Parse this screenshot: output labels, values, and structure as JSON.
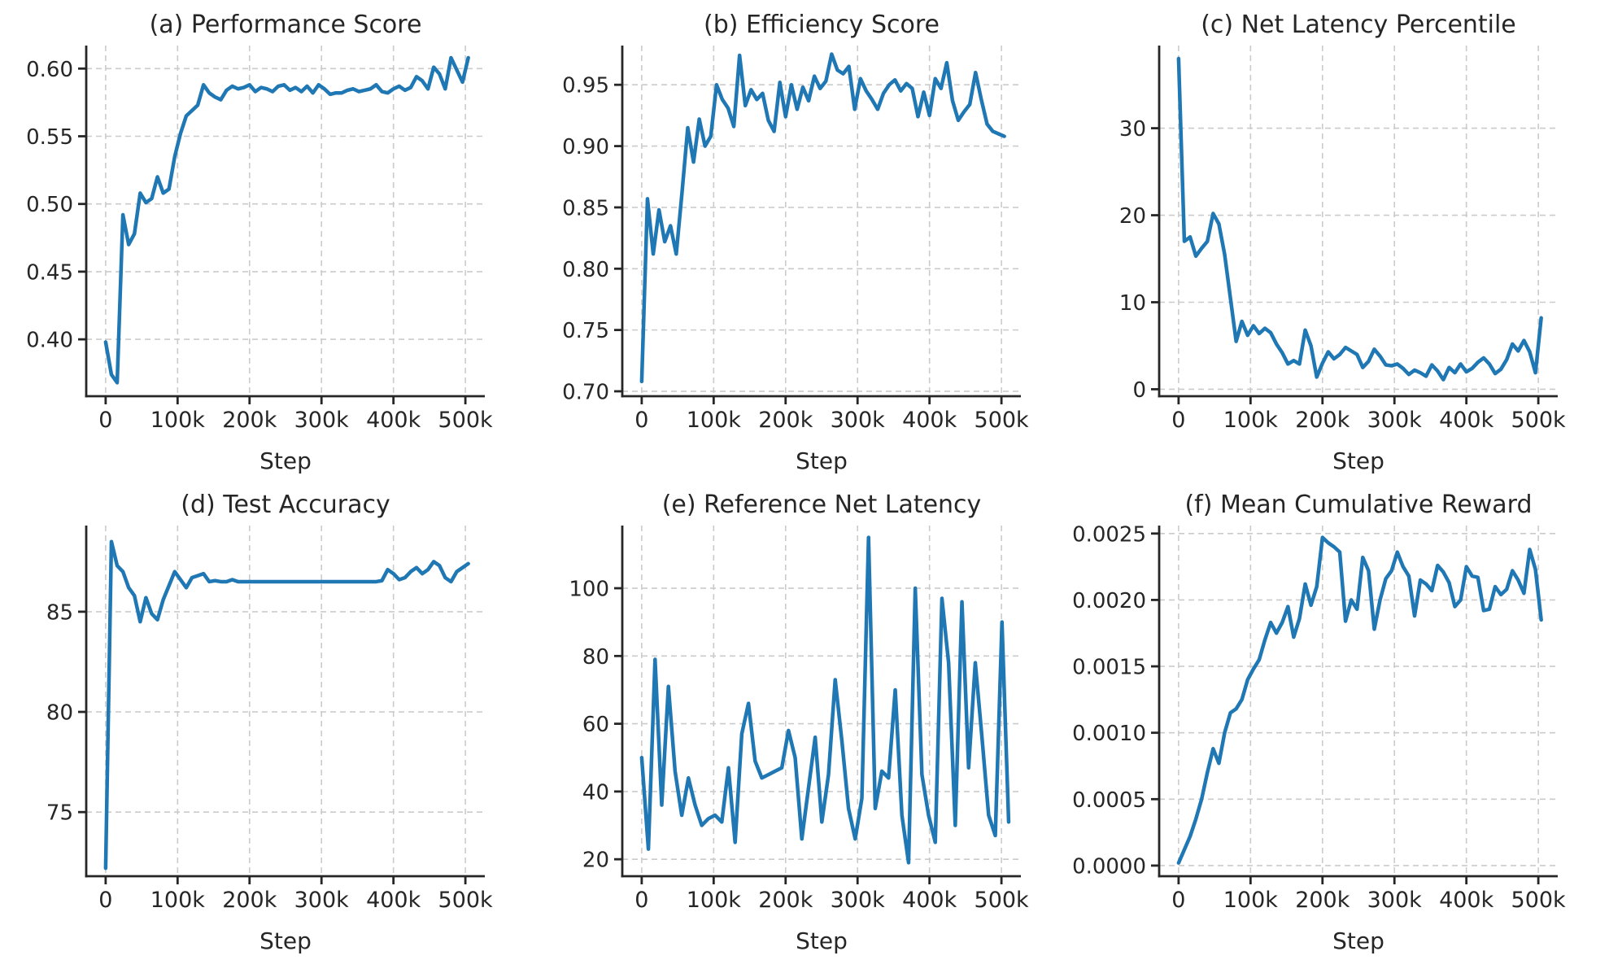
{
  "style": {
    "line_color": "#1f77b4",
    "grid_color": "#cbcbcb",
    "spine_color": "#262626",
    "text_color": "#262626",
    "background": "#ffffff"
  },
  "chart_data": [
    {
      "id": "a",
      "type": "line",
      "title": "(a) Performance Score",
      "xlabel": "Step",
      "legend": "none",
      "grid": true,
      "x_max": 504000,
      "xlim": [
        -27000,
        527000
      ],
      "ylim": [
        0.358,
        0.617
      ],
      "xticks": [
        0,
        100000,
        200000,
        300000,
        400000,
        500000
      ],
      "xtick_labels": [
        "0",
        "100k",
        "200k",
        "300k",
        "400k",
        "500k"
      ],
      "yticks": [
        0.4,
        0.45,
        0.5,
        0.55,
        0.6
      ],
      "ytick_labels": [
        "0.40",
        "0.45",
        "0.50",
        "0.55",
        "0.60"
      ],
      "values": [
        0.398,
        0.374,
        0.368,
        0.492,
        0.47,
        0.478,
        0.508,
        0.501,
        0.504,
        0.52,
        0.508,
        0.511,
        0.535,
        0.552,
        0.565,
        0.569,
        0.573,
        0.588,
        0.582,
        0.579,
        0.577,
        0.584,
        0.587,
        0.585,
        0.586,
        0.588,
        0.583,
        0.586,
        0.585,
        0.583,
        0.587,
        0.588,
        0.584,
        0.586,
        0.583,
        0.587,
        0.582,
        0.588,
        0.585,
        0.581,
        0.582,
        0.582,
        0.584,
        0.585,
        0.583,
        0.584,
        0.585,
        0.588,
        0.583,
        0.582,
        0.585,
        0.587,
        0.584,
        0.586,
        0.594,
        0.591,
        0.585,
        0.601,
        0.596,
        0.585,
        0.608,
        0.599,
        0.59,
        0.608
      ]
    },
    {
      "id": "b",
      "type": "line",
      "title": "(b) Efficiency Score",
      "xlabel": "Step",
      "legend": "none",
      "grid": true,
      "x_max": 504000,
      "xlim": [
        -27000,
        527000
      ],
      "ylim": [
        0.696,
        0.982
      ],
      "xticks": [
        0,
        100000,
        200000,
        300000,
        400000,
        500000
      ],
      "xtick_labels": [
        "0",
        "100k",
        "200k",
        "300k",
        "400k",
        "500k"
      ],
      "yticks": [
        0.7,
        0.75,
        0.8,
        0.85,
        0.9,
        0.95
      ],
      "ytick_labels": [
        "0.70",
        "0.75",
        "0.80",
        "0.85",
        "0.90",
        "0.95"
      ],
      "values": [
        0.708,
        0.857,
        0.812,
        0.848,
        0.822,
        0.835,
        0.812,
        0.862,
        0.915,
        0.887,
        0.922,
        0.9,
        0.908,
        0.95,
        0.938,
        0.931,
        0.916,
        0.974,
        0.933,
        0.946,
        0.938,
        0.943,
        0.921,
        0.912,
        0.952,
        0.924,
        0.95,
        0.93,
        0.948,
        0.937,
        0.957,
        0.947,
        0.953,
        0.975,
        0.962,
        0.959,
        0.965,
        0.93,
        0.955,
        0.945,
        0.938,
        0.93,
        0.943,
        0.95,
        0.954,
        0.945,
        0.951,
        0.947,
        0.924,
        0.944,
        0.925,
        0.955,
        0.947,
        0.968,
        0.937,
        0.921,
        0.928,
        0.934,
        0.96,
        0.938,
        0.918,
        0.912,
        0.91,
        0.908
      ]
    },
    {
      "id": "c",
      "type": "line",
      "title": "(c) Net Latency Percentile",
      "xlabel": "Step",
      "legend": "none",
      "grid": true,
      "x_max": 504000,
      "xlim": [
        -27000,
        527000
      ],
      "ylim": [
        -0.8,
        39.5
      ],
      "xticks": [
        0,
        100000,
        200000,
        300000,
        400000,
        500000
      ],
      "xtick_labels": [
        "0",
        "100k",
        "200k",
        "300k",
        "400k",
        "500k"
      ],
      "yticks": [
        0,
        10,
        20,
        30
      ],
      "ytick_labels": [
        "0",
        "10",
        "20",
        "30"
      ],
      "values": [
        38.0,
        17.0,
        17.5,
        15.3,
        16.2,
        17.0,
        20.2,
        19.0,
        15.5,
        10.5,
        5.5,
        7.8,
        6.2,
        7.3,
        6.4,
        7.0,
        6.5,
        5.2,
        4.2,
        2.9,
        3.3,
        2.9,
        6.8,
        5.0,
        1.4,
        3.0,
        4.3,
        3.5,
        4.0,
        4.8,
        4.4,
        4.0,
        2.5,
        3.2,
        4.6,
        3.8,
        2.8,
        2.7,
        2.9,
        2.4,
        1.7,
        2.2,
        1.9,
        1.5,
        2.8,
        2.1,
        1.1,
        2.5,
        1.9,
        2.9,
        2.0,
        2.4,
        3.1,
        3.6,
        2.9,
        1.8,
        2.3,
        3.4,
        5.2,
        4.4,
        5.6,
        4.3,
        1.9,
        8.2
      ]
    },
    {
      "id": "d",
      "type": "line",
      "title": "(d) Test Accuracy",
      "xlabel": "Step",
      "legend": "none",
      "grid": true,
      "x_max": 504000,
      "xlim": [
        -27000,
        527000
      ],
      "ylim": [
        71.8,
        89.3
      ],
      "xticks": [
        0,
        100000,
        200000,
        300000,
        400000,
        500000
      ],
      "xtick_labels": [
        "0",
        "100k",
        "200k",
        "300k",
        "400k",
        "500k"
      ],
      "yticks": [
        75,
        80,
        85
      ],
      "ytick_labels": [
        "75",
        "80",
        "85"
      ],
      "values": [
        72.2,
        88.5,
        87.3,
        87.0,
        86.2,
        85.8,
        84.5,
        85.7,
        84.9,
        84.6,
        85.6,
        86.3,
        87.0,
        86.6,
        86.2,
        86.7,
        86.8,
        86.9,
        86.5,
        86.55,
        86.5,
        86.5,
        86.6,
        86.5,
        86.5,
        86.5,
        86.5,
        86.5,
        86.5,
        86.5,
        86.5,
        86.5,
        86.5,
        86.5,
        86.5,
        86.5,
        86.5,
        86.5,
        86.5,
        86.5,
        86.5,
        86.5,
        86.5,
        86.5,
        86.5,
        86.5,
        86.5,
        86.5,
        86.55,
        87.1,
        86.9,
        86.6,
        86.7,
        87.0,
        87.2,
        86.9,
        87.1,
        87.5,
        87.3,
        86.7,
        86.5,
        87.0,
        87.2,
        87.4
      ]
    },
    {
      "id": "e",
      "type": "line",
      "title": "(e) Reference Net Latency",
      "xlabel": "Step",
      "legend": "none",
      "grid": true,
      "x_max": 510000,
      "xlim": [
        -27000,
        527000
      ],
      "ylim": [
        15,
        118.5
      ],
      "xticks": [
        0,
        100000,
        200000,
        300000,
        400000,
        500000
      ],
      "xtick_labels": [
        "0",
        "100k",
        "200k",
        "300k",
        "400k",
        "500k"
      ],
      "yticks": [
        20,
        40,
        60,
        80,
        100
      ],
      "ytick_labels": [
        "20",
        "40",
        "60",
        "80",
        "100"
      ],
      "values": [
        50,
        23,
        79,
        36,
        71,
        46,
        33,
        44,
        36,
        30,
        32,
        33,
        31,
        47,
        25,
        57,
        66,
        49,
        44,
        45,
        46,
        47,
        58,
        50,
        26,
        41,
        56,
        31,
        45,
        73,
        55,
        35,
        26,
        38,
        115,
        35,
        46,
        44,
        70,
        33,
        19,
        100,
        45,
        33,
        25,
        97,
        78,
        30,
        96,
        47,
        78,
        56,
        33,
        27,
        90,
        31
      ]
    },
    {
      "id": "f",
      "type": "line",
      "title": "(f) Mean Cumulative Reward",
      "xlabel": "Step",
      "legend": "none",
      "grid": true,
      "x_max": 504000,
      "xlim": [
        -27000,
        527000
      ],
      "ylim": [
        -8e-05,
        0.00256
      ],
      "xticks": [
        0,
        100000,
        200000,
        300000,
        400000,
        500000
      ],
      "xtick_labels": [
        "0",
        "100k",
        "200k",
        "300k",
        "400k",
        "500k"
      ],
      "yticks": [
        0.0,
        0.0005,
        0.001,
        0.0015,
        0.002,
        0.0025
      ],
      "ytick_labels": [
        "0.0000",
        "0.0005",
        "0.0010",
        "0.0015",
        "0.0020",
        "0.0025"
      ],
      "values": [
        2e-05,
        0.00012,
        0.00022,
        0.00035,
        0.0005,
        0.0007,
        0.00088,
        0.00077,
        0.001,
        0.00115,
        0.00118,
        0.00125,
        0.0014,
        0.00148,
        0.00155,
        0.0017,
        0.00183,
        0.00175,
        0.00183,
        0.00195,
        0.00172,
        0.00186,
        0.00212,
        0.00196,
        0.0021,
        0.00247,
        0.00243,
        0.0024,
        0.00236,
        0.00184,
        0.002,
        0.00193,
        0.00232,
        0.00222,
        0.00178,
        0.002,
        0.00216,
        0.00222,
        0.00236,
        0.00225,
        0.00218,
        0.00188,
        0.00215,
        0.00212,
        0.00207,
        0.00226,
        0.00221,
        0.00213,
        0.00195,
        0.002,
        0.00225,
        0.00218,
        0.00217,
        0.00192,
        0.00193,
        0.0021,
        0.00204,
        0.00208,
        0.00222,
        0.00215,
        0.00205,
        0.00238,
        0.00223,
        0.00185
      ]
    }
  ]
}
